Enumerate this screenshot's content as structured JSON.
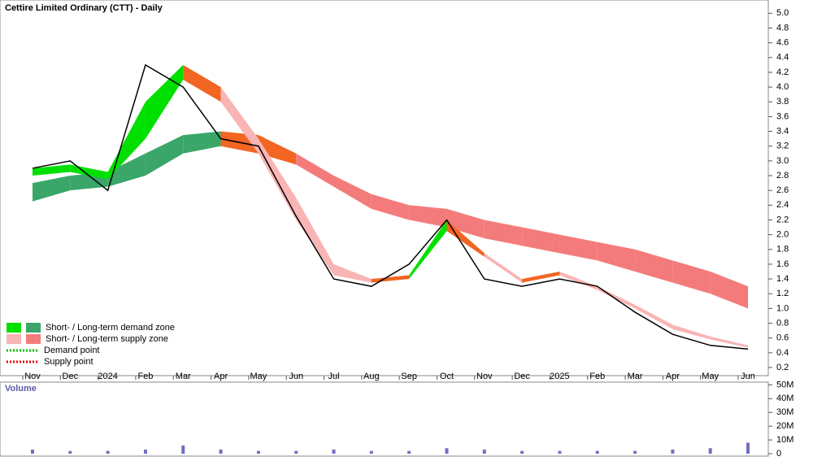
{
  "chart_data": {
    "type": "line",
    "title": "Cettire Limited Ordinary (CTT) - Daily",
    "categories": [
      "Nov",
      "Dec",
      "2024",
      "Feb",
      "Mar",
      "Apr",
      "May",
      "Jun",
      "Jul",
      "Aug",
      "Sep",
      "Oct",
      "Nov",
      "Dec",
      "2025",
      "Feb",
      "Mar",
      "Apr",
      "May",
      "Jun"
    ],
    "series": [
      {
        "values": [
          2.9,
          3.0,
          2.6,
          4.3,
          4.0,
          3.3,
          3.2,
          2.25,
          1.4,
          1.3,
          1.6,
          2.2,
          1.4,
          1.3,
          1.4,
          1.3,
          0.95,
          0.65,
          0.5,
          0.45
        ],
        "color": "#000000"
      }
    ],
    "short_band": {
      "lower": [
        2.8,
        2.85,
        2.75,
        3.3,
        4.1,
        3.8,
        3.1,
        2.2,
        1.45,
        1.35,
        1.4,
        2.05,
        1.7,
        1.35,
        1.45,
        1.25,
        1.0,
        0.72,
        0.58,
        0.47
      ],
      "upper": [
        2.9,
        2.95,
        2.85,
        3.8,
        4.3,
        4.0,
        3.3,
        2.5,
        1.6,
        1.4,
        1.45,
        2.2,
        1.75,
        1.4,
        1.5,
        1.3,
        1.05,
        0.78,
        0.62,
        0.5
      ],
      "colors": [
        "#00e000",
        "#00e000",
        "#00e000",
        "#00e000",
        "#f26522",
        "#f9b4b4",
        "#f9b4b4",
        "#f9b4b4",
        "#f9b4b4",
        "#f26522",
        "#00e000",
        "#f26522",
        "#f9b4b4",
        "#f26522",
        "#f9b4b4",
        "#f9b4b4",
        "#f9b4b4",
        "#f9b4b4",
        "#f9b4b4"
      ]
    },
    "long_band": {
      "lower": [
        2.45,
        2.6,
        2.65,
        2.8,
        3.1,
        3.2,
        3.1,
        2.95,
        2.65,
        2.35,
        2.2,
        2.1,
        1.95,
        1.85,
        1.75,
        1.65,
        1.5,
        1.35,
        1.2,
        1.0
      ],
      "upper": [
        2.7,
        2.8,
        2.85,
        3.1,
        3.35,
        3.4,
        3.35,
        3.1,
        2.8,
        2.55,
        2.4,
        2.35,
        2.2,
        2.1,
        2.0,
        1.9,
        1.8,
        1.65,
        1.5,
        1.3
      ],
      "colors": [
        "#3aa66a",
        "#3aa66a",
        "#3aa66a",
        "#3aa66a",
        "#3aa66a",
        "#f26522",
        "#f26522",
        "#f47b7b",
        "#f47b7b",
        "#f47b7b",
        "#f47b7b",
        "#f47b7b",
        "#f47b7b",
        "#f47b7b",
        "#f47b7b",
        "#f47b7b",
        "#f47b7b",
        "#f47b7b",
        "#f47b7b"
      ]
    },
    "ylim": [
      0.09,
      5.18
    ],
    "yticks": [
      {
        "value": 5,
        "label": "5.0"
      },
      4.8,
      4.6,
      4.4,
      4.2,
      {
        "value": 4,
        "label": "4.0"
      },
      3.8,
      3.6,
      3.4,
      3.2,
      {
        "value": 3,
        "label": "3.0"
      },
      2.8,
      2.6,
      2.4,
      2.2,
      {
        "value": 2,
        "label": "2.0"
      },
      1.8,
      1.6,
      1.4,
      1.2,
      {
        "value": 1,
        "label": "1.0"
      },
      0.8,
      0.6,
      0.4,
      0.2
    ],
    "legend": [
      {
        "label": "Short- / Long-term demand zone",
        "colors": [
          "#00e000",
          "#3aa66a"
        ]
      },
      {
        "label": "Short- / Long-term supply zone",
        "colors": [
          "#f9b4b4",
          "#f47b7b"
        ]
      },
      {
        "label": "Demand point",
        "colors": [
          "#00c000"
        ]
      },
      {
        "label": "Supply point",
        "colors": [
          "#e00000"
        ]
      }
    ],
    "volume": {
      "label": "Volume",
      "values": [
        3000000,
        2000000,
        2000000,
        3000000,
        6000000,
        3000000,
        2000000,
        2000000,
        3000000,
        2000000,
        2000000,
        4000000,
        3000000,
        2000000,
        2000000,
        2000000,
        2000000,
        3000000,
        4000000,
        8000000
      ],
      "color": "#7070c0",
      "ylim": [
        0,
        52000000
      ],
      "yticks": [
        0,
        {
          "value": 10000000,
          "label": "10M"
        },
        {
          "value": 20000000,
          "label": "20M"
        },
        {
          "value": 30000000,
          "label": "30M"
        },
        {
          "value": 40000000,
          "label": "40M"
        },
        {
          "value": 50000000,
          "label": "50M"
        }
      ]
    }
  }
}
